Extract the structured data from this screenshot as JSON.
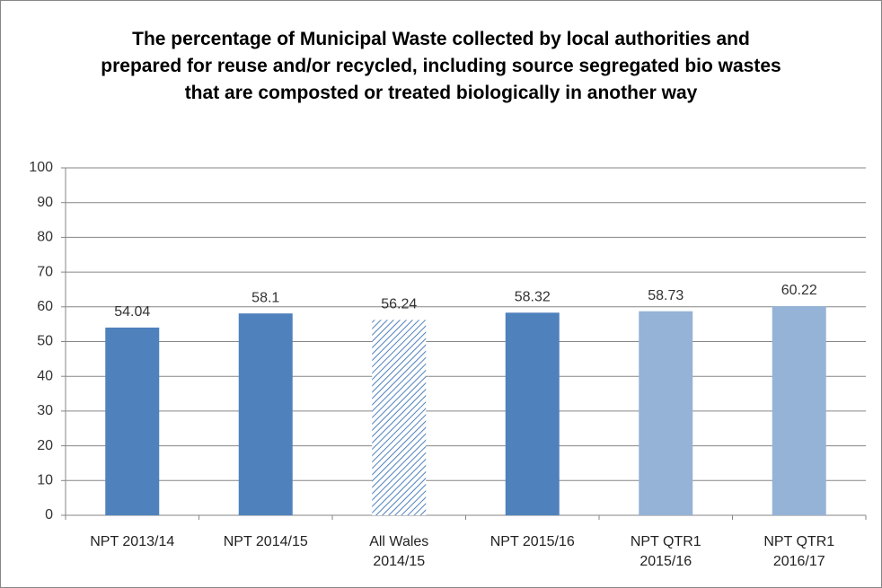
{
  "chart_data": {
    "type": "bar",
    "title": "The percentage of Municipal Waste collected by local authorities and prepared for reuse and/or recycled, including source segregated bio wastes that are composted or treated biologically in another way",
    "categories": [
      "NPT 2013/14",
      "NPT 2014/15",
      "All Wales 2014/15",
      "NPT 2015/16",
      "NPT QTR1 2015/16",
      "NPT QTR1 2016/17"
    ],
    "values": [
      54.04,
      58.1,
      56.24,
      58.32,
      58.73,
      60.22
    ],
    "colors": [
      "#4f81bd",
      "#4f81bd",
      "#4f81bd",
      "#4f81bd",
      "#95b3d7",
      "#95b3d7"
    ],
    "hatched": [
      false,
      false,
      true,
      false,
      false,
      false
    ],
    "ylim": [
      0,
      100
    ],
    "yticks": [
      0,
      10,
      20,
      30,
      40,
      50,
      60,
      70,
      80,
      90,
      100
    ],
    "grid": true
  }
}
